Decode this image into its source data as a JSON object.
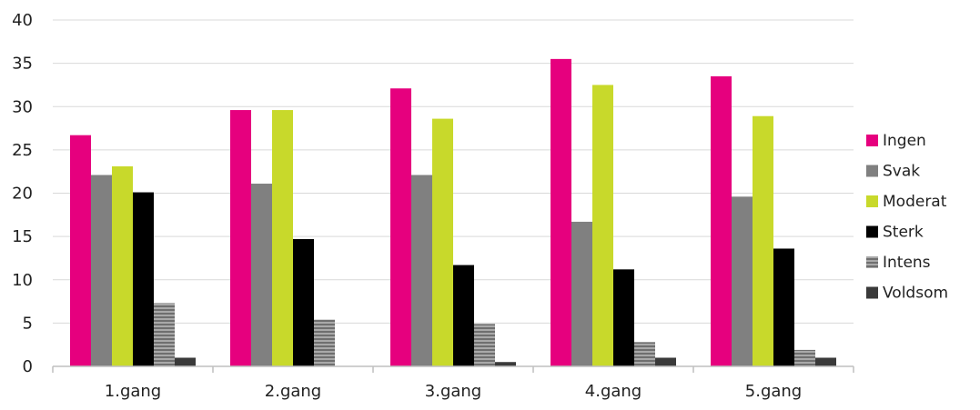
{
  "chart_data": {
    "type": "bar",
    "title": "",
    "xlabel": "",
    "ylabel": "",
    "ylim": [
      0,
      40
    ],
    "yticks": [
      "0",
      "5",
      "10",
      "15",
      "20",
      "25",
      "30",
      "35",
      "40"
    ],
    "grid": true,
    "legend_position": "right",
    "categories": [
      "1.gang",
      "2.gang",
      "3.gang",
      "4.gang",
      "5.gang"
    ],
    "series": [
      {
        "name": "Ingen",
        "color": "#e6007e",
        "pattern": "solid",
        "values": [
          26.7,
          29.6,
          32.1,
          35.5,
          33.5
        ]
      },
      {
        "name": "Svak",
        "color": "#808080",
        "pattern": "solid",
        "values": [
          22.1,
          21.1,
          22.1,
          16.7,
          19.6
        ]
      },
      {
        "name": "Moderat",
        "color": "#c8d92b",
        "pattern": "solid",
        "values": [
          23.1,
          29.6,
          28.6,
          32.5,
          28.9
        ]
      },
      {
        "name": "Sterk",
        "color": "#000000",
        "pattern": "solid",
        "values": [
          20.1,
          14.7,
          11.7,
          11.2,
          13.6
        ]
      },
      {
        "name": "Intens",
        "color": "#8c8c8c",
        "pattern": "horizontal-stripes",
        "values": [
          7.3,
          5.4,
          4.9,
          2.8,
          1.9
        ]
      },
      {
        "name": "Voldsom",
        "color": "#3a3a3a",
        "pattern": "solid",
        "values": [
          1.0,
          0.0,
          0.5,
          1.0,
          1.0
        ]
      }
    ]
  }
}
